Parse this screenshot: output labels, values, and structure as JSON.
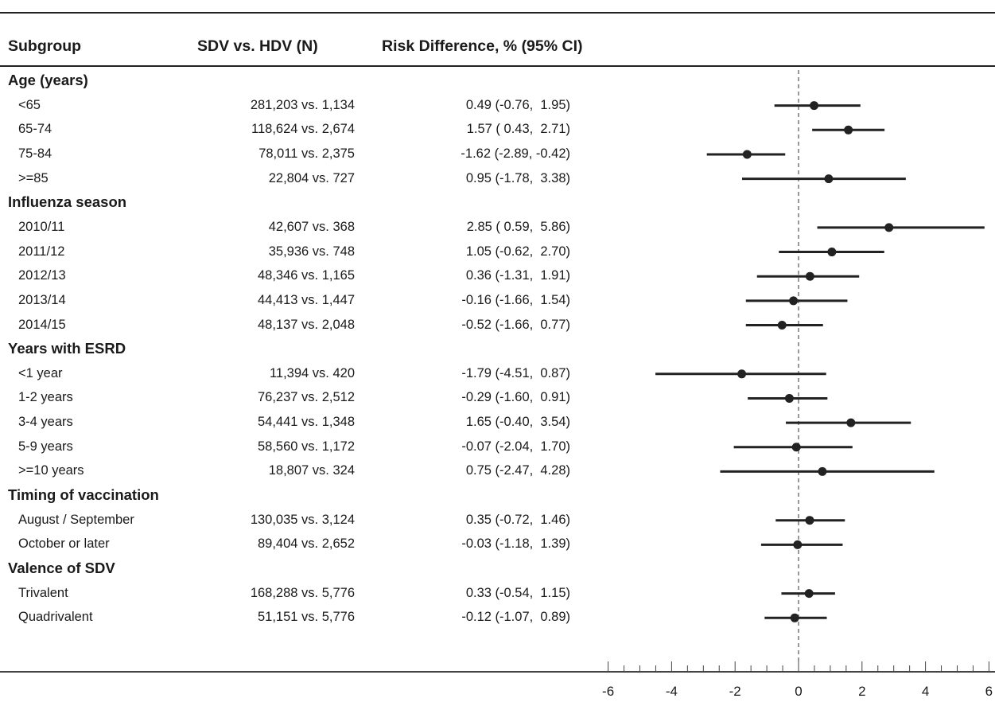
{
  "headers": {
    "subgroup": "Subgroup",
    "n": "SDV vs. HDV (N)",
    "rd": "Risk Difference, % (95% CI)"
  },
  "rows": [
    {
      "kind": "group",
      "label": "Age (years)"
    },
    {
      "kind": "item",
      "label": "<65",
      "n": "281,203 vs. 1,134",
      "rd": "0.49 (-0.76,  1.95)"
    },
    {
      "kind": "item",
      "label": "65-74",
      "n": "118,624 vs. 2,674",
      "rd": "1.57 ( 0.43,  2.71)"
    },
    {
      "kind": "item",
      "label": "75-84",
      "n": "78,011 vs. 2,375",
      "rd": "-1.62 (-2.89, -0.42)"
    },
    {
      "kind": "item",
      "label": ">=85",
      "n": "22,804 vs. 727",
      "rd": "0.95 (-1.78,  3.38)"
    },
    {
      "kind": "group",
      "label": "Influenza season"
    },
    {
      "kind": "item",
      "label": "2010/11",
      "n": "42,607 vs. 368",
      "rd": "2.85 ( 0.59,  5.86)"
    },
    {
      "kind": "item",
      "label": "2011/12",
      "n": "35,936 vs. 748",
      "rd": "1.05 (-0.62,  2.70)"
    },
    {
      "kind": "item",
      "label": "2012/13",
      "n": "48,346 vs. 1,165",
      "rd": "0.36 (-1.31,  1.91)"
    },
    {
      "kind": "item",
      "label": "2013/14",
      "n": "44,413 vs. 1,447",
      "rd": "-0.16 (-1.66,  1.54)"
    },
    {
      "kind": "item",
      "label": "2014/15",
      "n": "48,137 vs. 2,048",
      "rd": "-0.52 (-1.66,  0.77)"
    },
    {
      "kind": "group",
      "label": "Years with ESRD"
    },
    {
      "kind": "item",
      "label": "<1 year",
      "n": "11,394 vs. 420",
      "rd": "-1.79 (-4.51,  0.87)"
    },
    {
      "kind": "item",
      "label": "1-2 years",
      "n": "76,237 vs. 2,512",
      "rd": "-0.29 (-1.60,  0.91)"
    },
    {
      "kind": "item",
      "label": "3-4 years",
      "n": "54,441 vs. 1,348",
      "rd": "1.65 (-0.40,  3.54)"
    },
    {
      "kind": "item",
      "label": "5-9 years",
      "n": "58,560 vs. 1,172",
      "rd": "-0.07 (-2.04,  1.70)"
    },
    {
      "kind": "item",
      "label": ">=10 years",
      "n": "18,807 vs. 324",
      "rd": "0.75 (-2.47,  4.28)"
    },
    {
      "kind": "group",
      "label": "Timing of vaccination"
    },
    {
      "kind": "item",
      "label": "August / September",
      "n": "130,035 vs. 3,124",
      "rd": "0.35 (-0.72,  1.46)"
    },
    {
      "kind": "item",
      "label": "October or later",
      "n": "89,404 vs. 2,652",
      "rd": "-0.03 (-1.18,  1.39)"
    },
    {
      "kind": "group",
      "label": "Valence of SDV"
    },
    {
      "kind": "item",
      "label": "Trivalent",
      "n": "168,288 vs. 5,776",
      "rd": "0.33 (-0.54,  1.15)"
    },
    {
      "kind": "item",
      "label": "Quadrivalent",
      "n": "51,151 vs. 5,776",
      "rd": "-0.12 (-1.07,  0.89)"
    }
  ],
  "chart_data": {
    "type": "forest",
    "x_ticks": [
      -6,
      -4,
      -2,
      0,
      2,
      4,
      6
    ],
    "xlim": [
      -6,
      6
    ],
    "reference_line": 0,
    "points": [
      {
        "label": "<65",
        "estimate": 0.49,
        "lower": -0.76,
        "upper": 1.95
      },
      {
        "label": "65-74",
        "estimate": 1.57,
        "lower": 0.43,
        "upper": 2.71
      },
      {
        "label": "75-84",
        "estimate": -1.62,
        "lower": -2.89,
        "upper": -0.42
      },
      {
        "label": ">=85",
        "estimate": 0.95,
        "lower": -1.78,
        "upper": 3.38
      },
      {
        "label": "2010/11",
        "estimate": 2.85,
        "lower": 0.59,
        "upper": 5.86
      },
      {
        "label": "2011/12",
        "estimate": 1.05,
        "lower": -0.62,
        "upper": 2.7
      },
      {
        "label": "2012/13",
        "estimate": 0.36,
        "lower": -1.31,
        "upper": 1.91
      },
      {
        "label": "2013/14",
        "estimate": -0.16,
        "lower": -1.66,
        "upper": 1.54
      },
      {
        "label": "2014/15",
        "estimate": -0.52,
        "lower": -1.66,
        "upper": 0.77
      },
      {
        "label": "<1 year",
        "estimate": -1.79,
        "lower": -4.51,
        "upper": 0.87
      },
      {
        "label": "1-2 years",
        "estimate": -0.29,
        "lower": -1.6,
        "upper": 0.91
      },
      {
        "label": "3-4 years",
        "estimate": 1.65,
        "lower": -0.4,
        "upper": 3.54
      },
      {
        "label": "5-9 years",
        "estimate": -0.07,
        "lower": -2.04,
        "upper": 1.7
      },
      {
        "label": ">=10 years",
        "estimate": 0.75,
        "lower": -2.47,
        "upper": 4.28
      },
      {
        "label": "August / September",
        "estimate": 0.35,
        "lower": -0.72,
        "upper": 1.46
      },
      {
        "label": "October or later",
        "estimate": -0.03,
        "lower": -1.18,
        "upper": 1.39
      },
      {
        "label": "Trivalent",
        "estimate": 0.33,
        "lower": -0.54,
        "upper": 1.15
      },
      {
        "label": "Quadrivalent",
        "estimate": -0.12,
        "lower": -1.07,
        "upper": 0.89
      }
    ]
  }
}
